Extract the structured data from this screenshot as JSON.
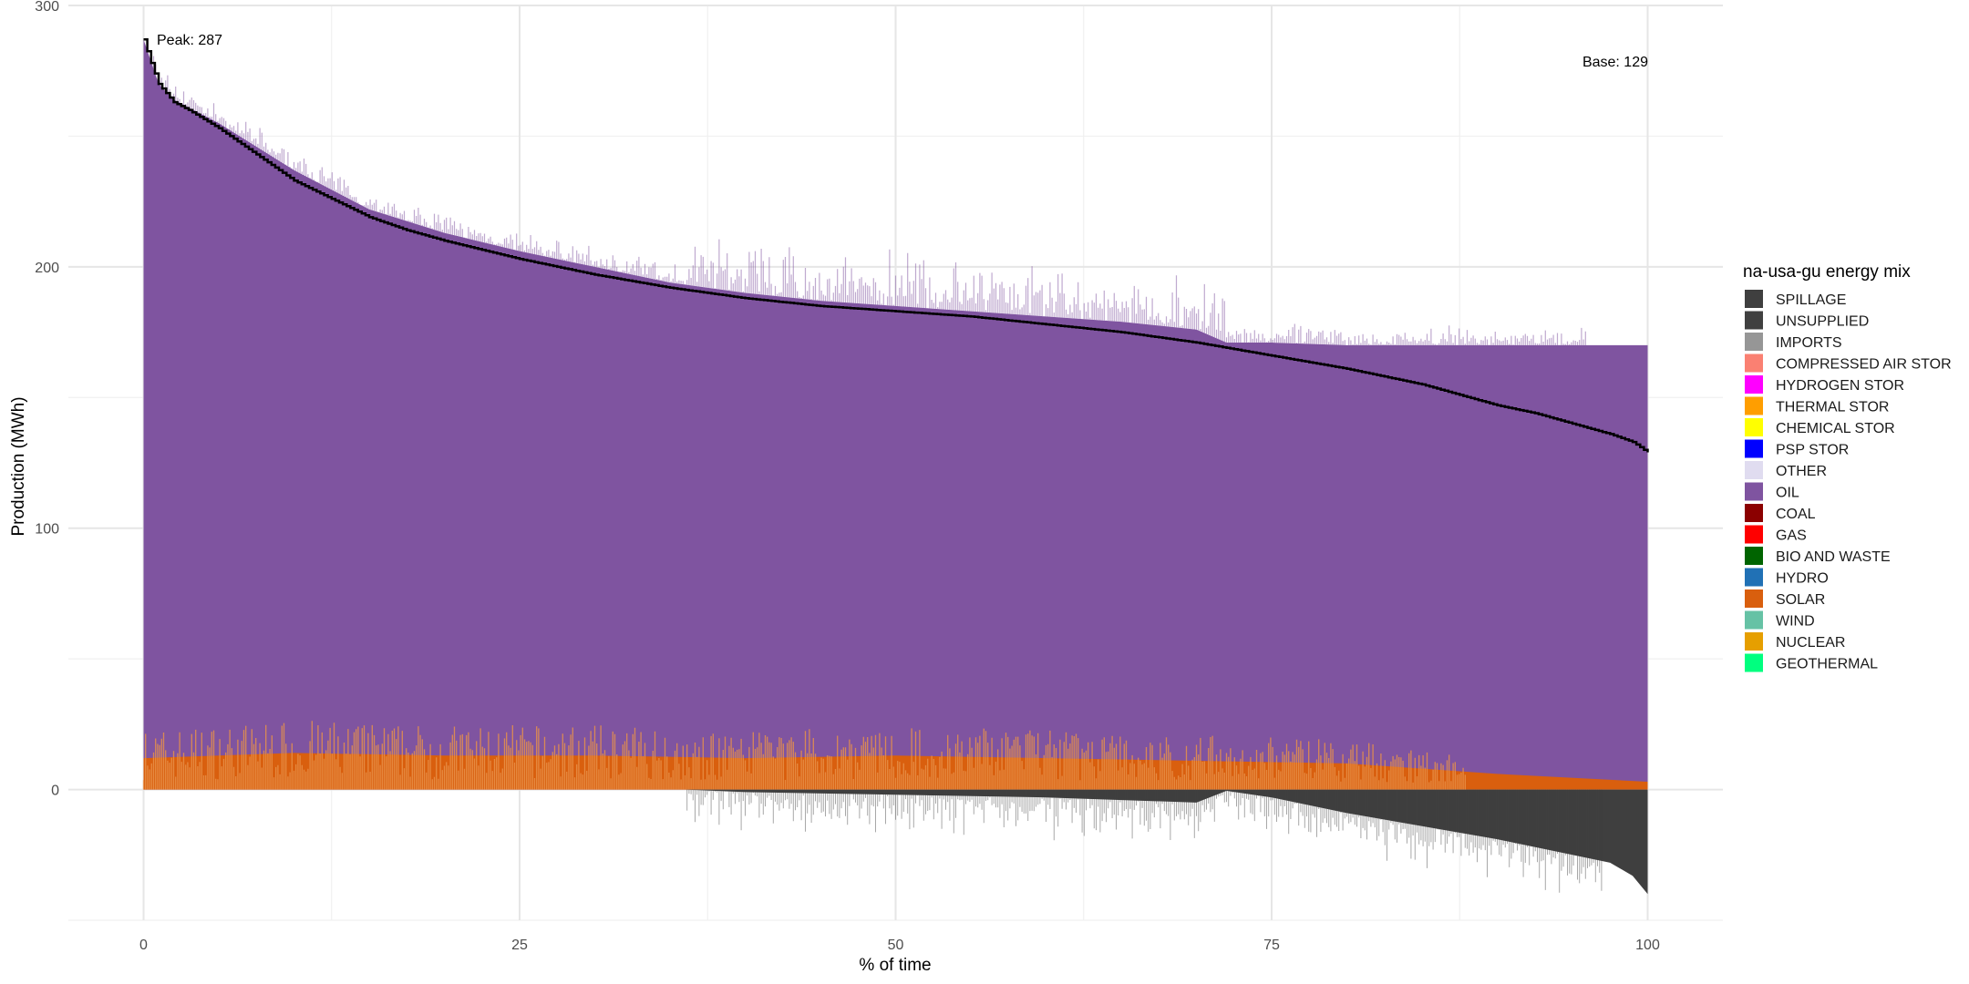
{
  "chart_data": {
    "type": "area",
    "title": "",
    "xlabel": "% of time",
    "ylabel": "Production (MWh)",
    "xlim": [
      -5,
      105
    ],
    "ylim": [
      -50,
      300
    ],
    "x_ticks": [
      0,
      25,
      50,
      75,
      100
    ],
    "y_ticks": [
      0,
      100,
      200,
      300
    ],
    "grid": true,
    "legend": {
      "title": "na-usa-gu energy mix",
      "position": "right",
      "entries": [
        {
          "name": "SPILLAGE",
          "color": "#3f3f3f"
        },
        {
          "name": "UNSUPPLIED",
          "color": "#404040"
        },
        {
          "name": "IMPORTS",
          "color": "#969696"
        },
        {
          "name": "COMPRESSED AIR STOR",
          "color": "#fa8072"
        },
        {
          "name": "HYDROGEN STOR",
          "color": "#ff00ff"
        },
        {
          "name": "THERMAL STOR",
          "color": "#ff9e00"
        },
        {
          "name": "CHEMICAL STOR",
          "color": "#ffff00"
        },
        {
          "name": "PSP STOR",
          "color": "#0000ff"
        },
        {
          "name": "OTHER",
          "color": "#e0dcf0"
        },
        {
          "name": "OIL",
          "color": "#7f54a0"
        },
        {
          "name": "COAL",
          "color": "#8b0000"
        },
        {
          "name": "GAS",
          "color": "#ff0000"
        },
        {
          "name": "BIO AND WASTE",
          "color": "#006400"
        },
        {
          "name": "HYDRO",
          "color": "#2171b5"
        },
        {
          "name": "SOLAR",
          "color": "#d95f0e"
        },
        {
          "name": "WIND",
          "color": "#66c2a5"
        },
        {
          "name": "NUCLEAR",
          "color": "#e69f00"
        },
        {
          "name": "GEOTHERMAL",
          "color": "#00ff7f"
        }
      ]
    },
    "annotations": [
      {
        "text": "Peak: 287",
        "x": 1,
        "y": 290
      },
      {
        "text": "Base: 129",
        "x": 100,
        "y": 283
      }
    ],
    "load_curve": {
      "name": "Load",
      "color": "#000000",
      "x": [
        0,
        0.5,
        1,
        2,
        3,
        5,
        7.5,
        10,
        12.5,
        15,
        17.5,
        20,
        25,
        30,
        35,
        40,
        45,
        50,
        55,
        60,
        65,
        70,
        75,
        80,
        85,
        90,
        92.5,
        95,
        97.5,
        99,
        99.5,
        100
      ],
      "y": [
        287,
        278,
        270,
        263,
        260,
        253,
        243,
        233,
        226,
        219,
        214,
        210,
        203,
        197,
        192,
        188,
        185,
        183,
        181,
        178,
        175,
        171,
        166,
        161,
        155,
        147,
        144,
        140,
        136,
        133,
        131,
        129
      ]
    },
    "series": [
      {
        "name": "OIL",
        "color": "#7f54a0",
        "x": [
          0,
          1,
          2,
          5,
          10,
          15,
          20,
          25,
          30,
          35,
          40,
          45,
          50,
          55,
          60,
          65,
          70,
          72,
          75,
          80,
          85,
          90,
          95,
          100
        ],
        "y": [
          287,
          270,
          264,
          255,
          237,
          222,
          213,
          206,
          200,
          194,
          190,
          187,
          185,
          183,
          181,
          179,
          176,
          171,
          171,
          170,
          170,
          170,
          170,
          170
        ]
      },
      {
        "name": "SOLAR",
        "color": "#d95f0e",
        "x": [
          0,
          10,
          20,
          30,
          40,
          50,
          60,
          70,
          80,
          90,
          100
        ],
        "y": [
          12,
          14,
          13,
          13,
          12,
          13,
          12,
          11,
          10,
          6,
          3
        ]
      },
      {
        "name": "SPILLAGE",
        "color": "#3f3f3f",
        "x": [
          0,
          36,
          40,
          50,
          60,
          70,
          72,
          75,
          80,
          85,
          90,
          95,
          97.5,
          99,
          100
        ],
        "y": [
          0,
          0,
          -1,
          -2,
          -3,
          -5,
          -0.5,
          -3,
          -9,
          -14,
          -19,
          -25,
          -28,
          -33,
          -40
        ]
      }
    ]
  }
}
